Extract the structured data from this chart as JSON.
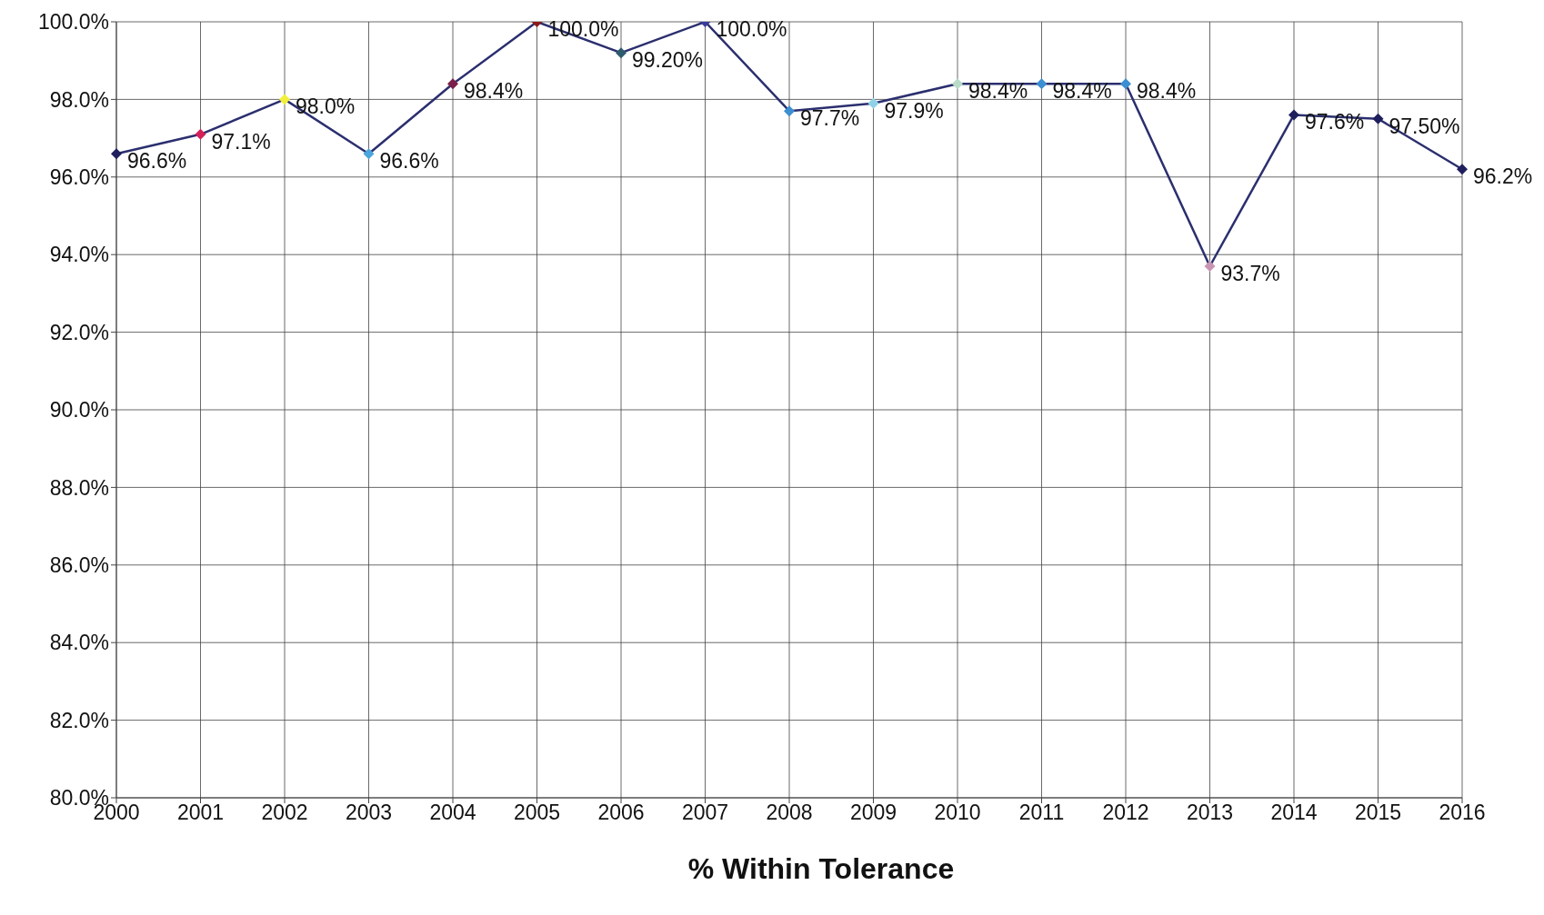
{
  "chart_data": {
    "type": "line",
    "xlabel": "% Within Tolerance",
    "categories": [
      "2000",
      "2001",
      "2002",
      "2003",
      "2004",
      "2005",
      "2006",
      "2007",
      "2008",
      "2009",
      "2010",
      "2011",
      "2012",
      "2013",
      "2014",
      "2015",
      "2016"
    ],
    "series": [
      {
        "color": "#2b2f6e",
        "values": [
          96.6,
          97.1,
          98.0,
          96.6,
          98.4,
          100.0,
          99.2,
          100.0,
          97.7,
          97.9,
          98.4,
          98.4,
          98.4,
          93.7,
          97.6,
          97.5,
          96.2
        ],
        "colors": [
          "#1f1f5e",
          "#d4215a",
          "#f2ef3a",
          "#4aa6dc",
          "#7a1f4a",
          "#8b1a1a",
          "#2e5b6e",
          "#3a3d9a",
          "#3c8fd0",
          "#8fd2e8",
          "#b8dcc8",
          "#3c8fd0",
          "#3c8fd0",
          "#c896b4",
          "#1f1f5e",
          "#1f1f5e",
          "#1f1f5e"
        ],
        "value_labels": [
          "96.6%",
          "97.1%",
          "98.0%",
          "96.6%",
          "98.4%",
          "100.0%",
          "99.20%",
          "100.0%",
          "97.7%",
          "97.9%",
          "98.4%",
          "98.4%",
          "98.4%",
          "93.7%",
          "97.6%",
          "97.50%",
          "96.2%"
        ]
      }
    ],
    "ylim": [
      80,
      100
    ],
    "yticks": [
      {
        "value": 80,
        "label": "80.0%"
      },
      {
        "value": 82,
        "label": "82.0%"
      },
      {
        "value": 84,
        "label": "84.0%"
      },
      {
        "value": 86,
        "label": "86.0%"
      },
      {
        "value": 88,
        "label": "88.0%"
      },
      {
        "value": 90,
        "label": "90.0%"
      },
      {
        "value": 92,
        "label": "92.0%"
      },
      {
        "value": 94,
        "label": "94.0%"
      },
      {
        "value": 96,
        "label": "96.0%"
      },
      {
        "value": 98,
        "label": "98.0%"
      },
      {
        "value": 100,
        "label": "100.0%"
      }
    ],
    "grid": true,
    "marker": "diamond"
  }
}
